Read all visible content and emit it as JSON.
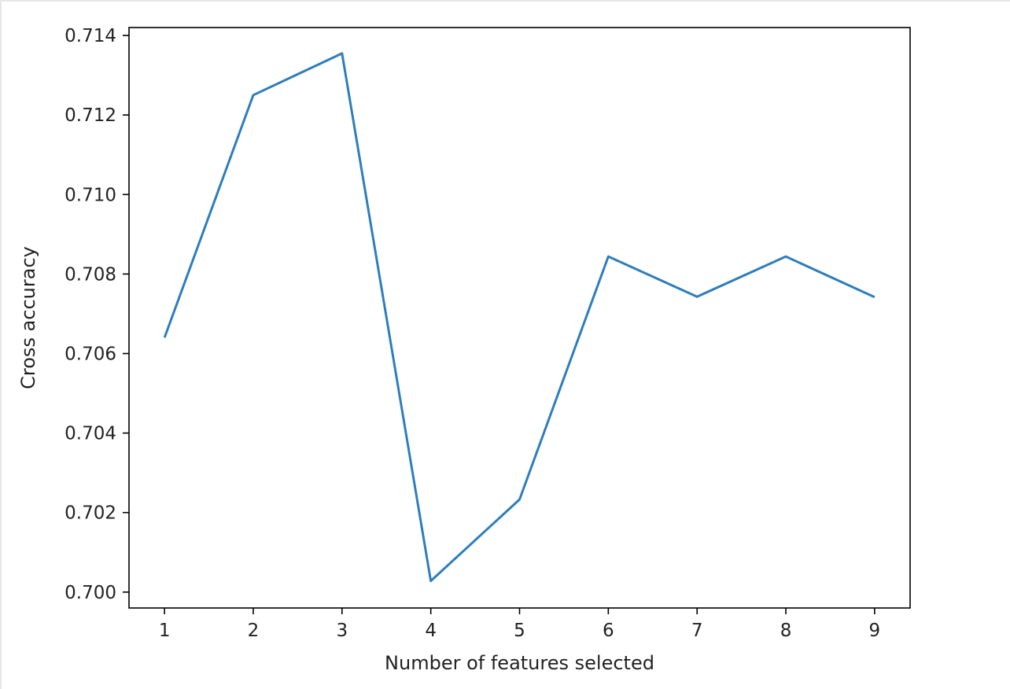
{
  "chart_data": {
    "type": "line",
    "title": "",
    "xlabel": "Number of features selected",
    "ylabel": "Cross accuracy",
    "x": [
      1,
      2,
      3,
      4,
      5,
      6,
      7,
      8,
      9
    ],
    "series": [
      {
        "values": [
          0.7064,
          0.7125,
          0.71355,
          0.70028,
          0.70233,
          0.70844,
          0.70743,
          0.70844,
          0.70742
        ]
      }
    ],
    "xlim": [
      0.6,
      9.4
    ],
    "ylim": [
      0.6996,
      0.7142
    ],
    "xticks": [
      1,
      2,
      3,
      4,
      5,
      6,
      7,
      8,
      9
    ],
    "yticks": [
      0.7,
      0.702,
      0.704,
      0.706,
      0.708,
      0.71,
      0.712,
      0.714
    ],
    "ytick_labels": [
      "0.700",
      "0.702",
      "0.704",
      "0.706",
      "0.708",
      "0.710",
      "0.712",
      "0.714"
    ],
    "grid": false,
    "line_color": "#2e7ebc"
  }
}
